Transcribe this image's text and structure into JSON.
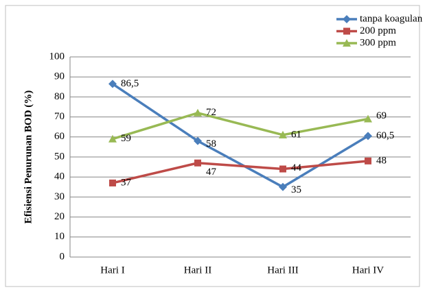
{
  "chart_data": {
    "type": "line",
    "y_label": "Efisiensi Penurunan BOD (%)",
    "categories": [
      "Hari I",
      "Hari II",
      "Hari III",
      "Hari IV"
    ],
    "series": [
      {
        "name": "tanpa koagulan",
        "color": "#4a7ebb",
        "marker": "diamond",
        "values": [
          86.5,
          58,
          35,
          60.5
        ],
        "value_labels": [
          "86,5",
          "58",
          "35",
          "60,5"
        ]
      },
      {
        "name": "200 ppm",
        "color": "#be4b48",
        "marker": "square",
        "values": [
          37,
          47,
          44,
          48
        ]
      },
      {
        "name": "300 ppm",
        "color": "#98b954",
        "marker": "triangle",
        "values": [
          59,
          72,
          61,
          69
        ]
      }
    ],
    "ylim": [
      0,
      100
    ],
    "yticks": [
      0,
      10,
      20,
      30,
      40,
      50,
      60,
      70,
      80,
      90,
      100
    ],
    "grid": true,
    "legend": "top-right"
  }
}
